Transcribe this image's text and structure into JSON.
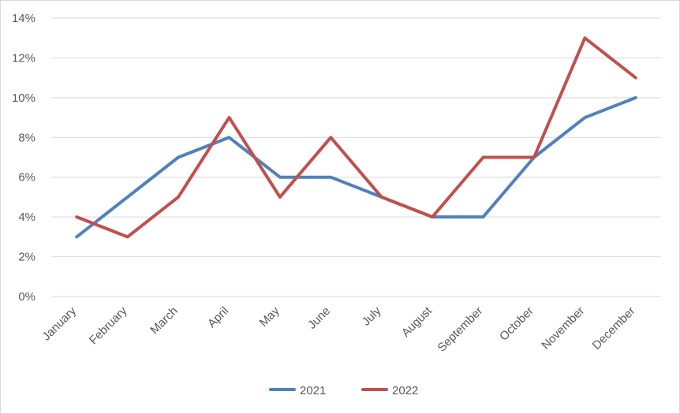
{
  "chart_data": {
    "type": "line",
    "title": "",
    "xlabel": "",
    "ylabel": "",
    "categories": [
      "January",
      "February",
      "March",
      "April",
      "May",
      "June",
      "July",
      "August",
      "September",
      "October",
      "November",
      "December"
    ],
    "y_ticks": [
      "0%",
      "2%",
      "4%",
      "6%",
      "8%",
      "10%",
      "12%",
      "14%"
    ],
    "ylim": [
      0,
      14
    ],
    "grid": true,
    "legend_position": "bottom",
    "series": [
      {
        "name": "2021",
        "color": "#4f81bd",
        "values": [
          3,
          5,
          7,
          8,
          6,
          6,
          5,
          4,
          4,
          7,
          9,
          10
        ]
      },
      {
        "name": "2022",
        "color": "#c0504d",
        "values": [
          4,
          3,
          5,
          9,
          5,
          8,
          5,
          4,
          7,
          7,
          13,
          11
        ]
      }
    ]
  }
}
